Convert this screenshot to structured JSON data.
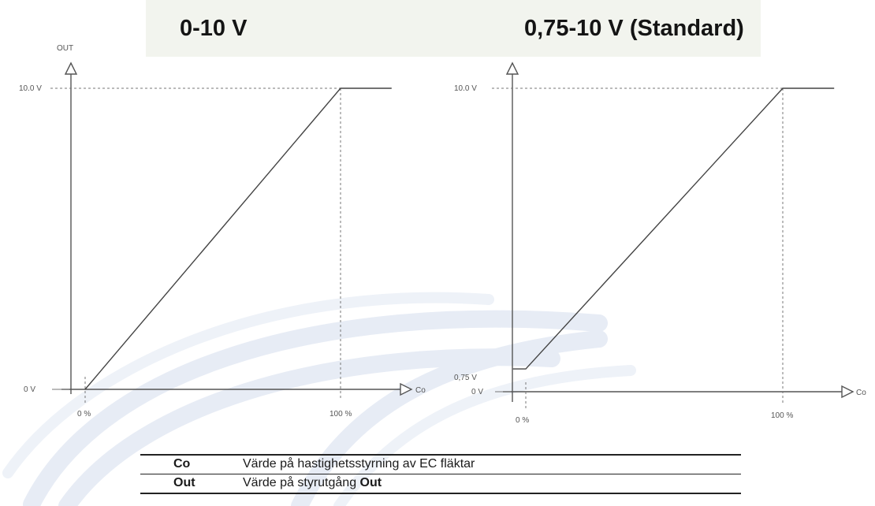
{
  "headers": {
    "left": "0-10 V",
    "right": "0,75-10 V (Standard)"
  },
  "chart_data": [
    {
      "type": "line",
      "title": "0-10 V",
      "ylabel": "OUT",
      "xlabel": "Co",
      "x_ticks": [
        "0 %",
        "100 %"
      ],
      "y_ticks": [
        "0 V",
        "10.0 V"
      ],
      "x": [
        0,
        0,
        100,
        120
      ],
      "y": [
        0,
        0,
        10.0,
        10.0
      ]
    },
    {
      "type": "line",
      "title": "0,75-10 V (Standard)",
      "ylabel": "",
      "xlabel": "Co",
      "x_ticks": [
        "0 %",
        "100 %"
      ],
      "y_ticks": [
        "0 V",
        "0,75 V",
        "10.0 V"
      ],
      "x": [
        -5,
        0,
        100,
        120
      ],
      "y": [
        0.75,
        0.75,
        10.0,
        10.0
      ]
    }
  ],
  "legend": [
    {
      "key": "Co",
      "text": "Värde på hastighetsstyrning av EC fläktar",
      "text_bold": ""
    },
    {
      "key": "Out",
      "text": "Värde på styrutgång ",
      "text_bold": "Out"
    }
  ]
}
